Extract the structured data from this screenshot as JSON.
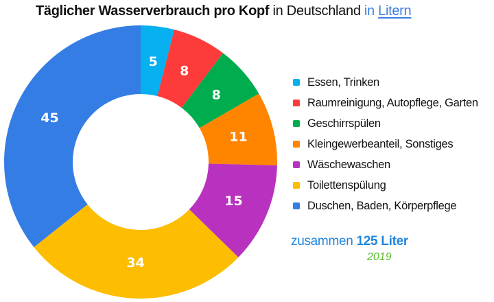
{
  "title": {
    "part_bold": "Täglicher Wasserverbrauch pro Kopf",
    "part_normal": "in Deutschland",
    "part_accent": "in",
    "part_link": "Litern"
  },
  "chart_data": {
    "type": "pie",
    "variant": "donut",
    "title": "Täglicher Wasserverbrauch pro Kopf in Deutschland in Litern",
    "unit": "Liter",
    "start": "top, clockwise",
    "legend_position": "right",
    "slices": [
      {
        "label": "Essen, Trinken",
        "value": 5,
        "color": "#07b0ee"
      },
      {
        "label": "Raumreinigung, Autopflege, Garten",
        "value": 8,
        "color": "#fd3b3b"
      },
      {
        "label": "Geschirrspülen",
        "value": 8,
        "color": "#00ad4e"
      },
      {
        "label": "Kleingewerbeanteil, Sonstiges",
        "value": 11,
        "color": "#ff8400"
      },
      {
        "label": "Wäschewaschen",
        "value": 15,
        "color": "#b931bf"
      },
      {
        "label": "Toilettenspülung",
        "value": 34,
        "color": "#fdbd00"
      },
      {
        "label": "Duschen, Baden, Körperpflege",
        "value": 45,
        "color": "#347de5"
      }
    ],
    "total": 125,
    "year": "2019"
  },
  "summary": {
    "prefix": "zusammen",
    "total_label": "125 Liter",
    "year": "2019"
  }
}
